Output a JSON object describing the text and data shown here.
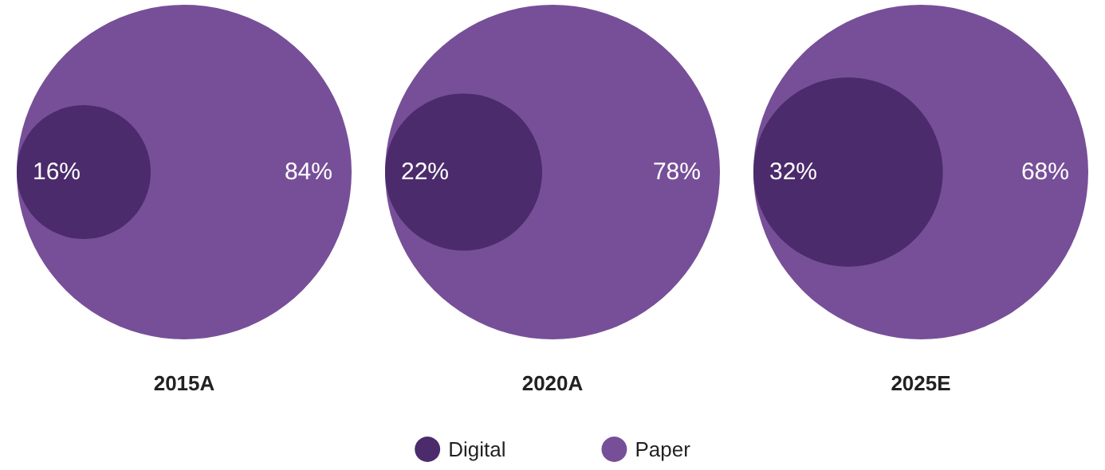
{
  "chart_data": {
    "type": "other",
    "categories": [
      "2015A",
      "2020A",
      "2025E"
    ],
    "series": [
      {
        "name": "Digital",
        "color": "#4b2b6b",
        "values": [
          16,
          22,
          32
        ],
        "value_labels": [
          "16%",
          "22%",
          "32%"
        ]
      },
      {
        "name": "Paper",
        "color": "#774f98",
        "values": [
          84,
          78,
          68
        ],
        "value_labels": [
          "84%",
          "78%",
          "68%"
        ]
      }
    ],
    "legend": "bottom"
  }
}
